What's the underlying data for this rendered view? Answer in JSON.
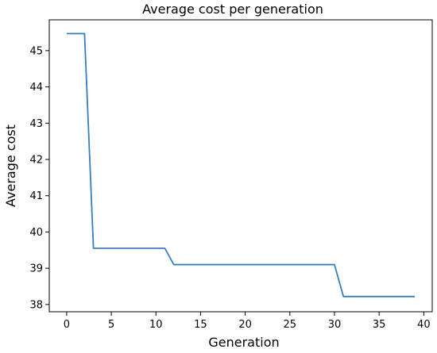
{
  "chart_data": {
    "type": "line",
    "title": "Average cost per generation",
    "xlabel": "Generation",
    "ylabel": "Average cost",
    "xlim": [
      -1.95,
      40.95
    ],
    "ylim": [
      37.8,
      45.85
    ],
    "xticks": [
      0,
      5,
      10,
      15,
      20,
      25,
      30,
      35,
      40
    ],
    "yticks": [
      38,
      39,
      40,
      41,
      42,
      43,
      44,
      45
    ],
    "grid": false,
    "series": [
      {
        "color": "#3a7dbf",
        "x": [
          0,
          1,
          2,
          3,
          4,
          5,
          6,
          7,
          8,
          9,
          10,
          11,
          12,
          13,
          14,
          15,
          16,
          17,
          18,
          19,
          20,
          21,
          22,
          23,
          24,
          25,
          26,
          27,
          28,
          29,
          30,
          31,
          32,
          33,
          34,
          35,
          36,
          37,
          38,
          39
        ],
        "y": [
          45.47,
          45.47,
          45.47,
          39.55,
          39.55,
          39.55,
          39.55,
          39.55,
          39.55,
          39.55,
          39.55,
          39.55,
          39.1,
          39.1,
          39.1,
          39.1,
          39.1,
          39.1,
          39.1,
          39.1,
          39.1,
          39.1,
          39.1,
          39.1,
          39.1,
          39.1,
          39.1,
          39.1,
          39.1,
          39.1,
          39.1,
          38.22,
          38.22,
          38.22,
          38.22,
          38.22,
          38.22,
          38.22,
          38.22,
          38.22
        ]
      }
    ]
  }
}
